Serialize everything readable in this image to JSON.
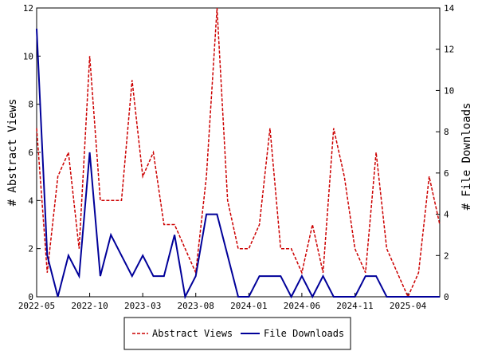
{
  "chart_data": {
    "type": "line",
    "x": [
      "2022-05",
      "2022-06",
      "2022-07",
      "2022-08",
      "2022-09",
      "2022-10",
      "2022-11",
      "2022-12",
      "2023-01",
      "2023-02",
      "2023-03",
      "2023-04",
      "2023-05",
      "2023-06",
      "2023-07",
      "2023-08",
      "2023-09",
      "2023-10",
      "2023-11",
      "2023-12",
      "2024-01",
      "2024-02",
      "2024-03",
      "2024-04",
      "2024-05",
      "2024-06",
      "2024-07",
      "2024-08",
      "2024-09",
      "2024-10",
      "2024-11",
      "2024-12",
      "2025-01",
      "2025-02",
      "2025-03",
      "2025-04",
      "2025-05",
      "2025-06",
      "2025-07"
    ],
    "x_ticks": [
      "2022-05",
      "2022-10",
      "2023-03",
      "2023-08",
      "2024-01",
      "2024-06",
      "2024-11",
      "2025-04"
    ],
    "series": [
      {
        "name": "Abstract Views",
        "axis": "left",
        "color": "#cc0000",
        "style": "dashed",
        "values": [
          7,
          1,
          5,
          6,
          2,
          10,
          4,
          4,
          4,
          9,
          5,
          6,
          3,
          3,
          2,
          1,
          5,
          12,
          4,
          2,
          2,
          3,
          7,
          2,
          2,
          1,
          3,
          1,
          7,
          5,
          2,
          1,
          6,
          2,
          1,
          0,
          1,
          5,
          3
        ]
      },
      {
        "name": "File Downloads",
        "axis": "right",
        "color": "#000099",
        "style": "solid",
        "values": [
          13,
          2,
          0,
          2,
          1,
          7,
          1,
          3,
          2,
          1,
          2,
          1,
          1,
          3,
          0,
          1,
          4,
          4,
          2,
          0,
          0,
          1,
          1,
          1,
          0,
          1,
          0,
          1,
          0,
          0,
          0,
          1,
          1,
          0,
          0,
          0,
          0,
          0,
          0
        ]
      }
    ],
    "ylabel": "# Abstract Views",
    "ylabel_right": "# File Downloads",
    "ylim": [
      0,
      12
    ],
    "ylim_right": [
      0,
      14
    ],
    "yticks": [
      0,
      2,
      4,
      6,
      8,
      10,
      12
    ],
    "yticks_right": [
      0,
      2,
      4,
      6,
      8,
      10,
      12,
      14
    ],
    "legend_placement": "bottom-center",
    "grid": false
  }
}
